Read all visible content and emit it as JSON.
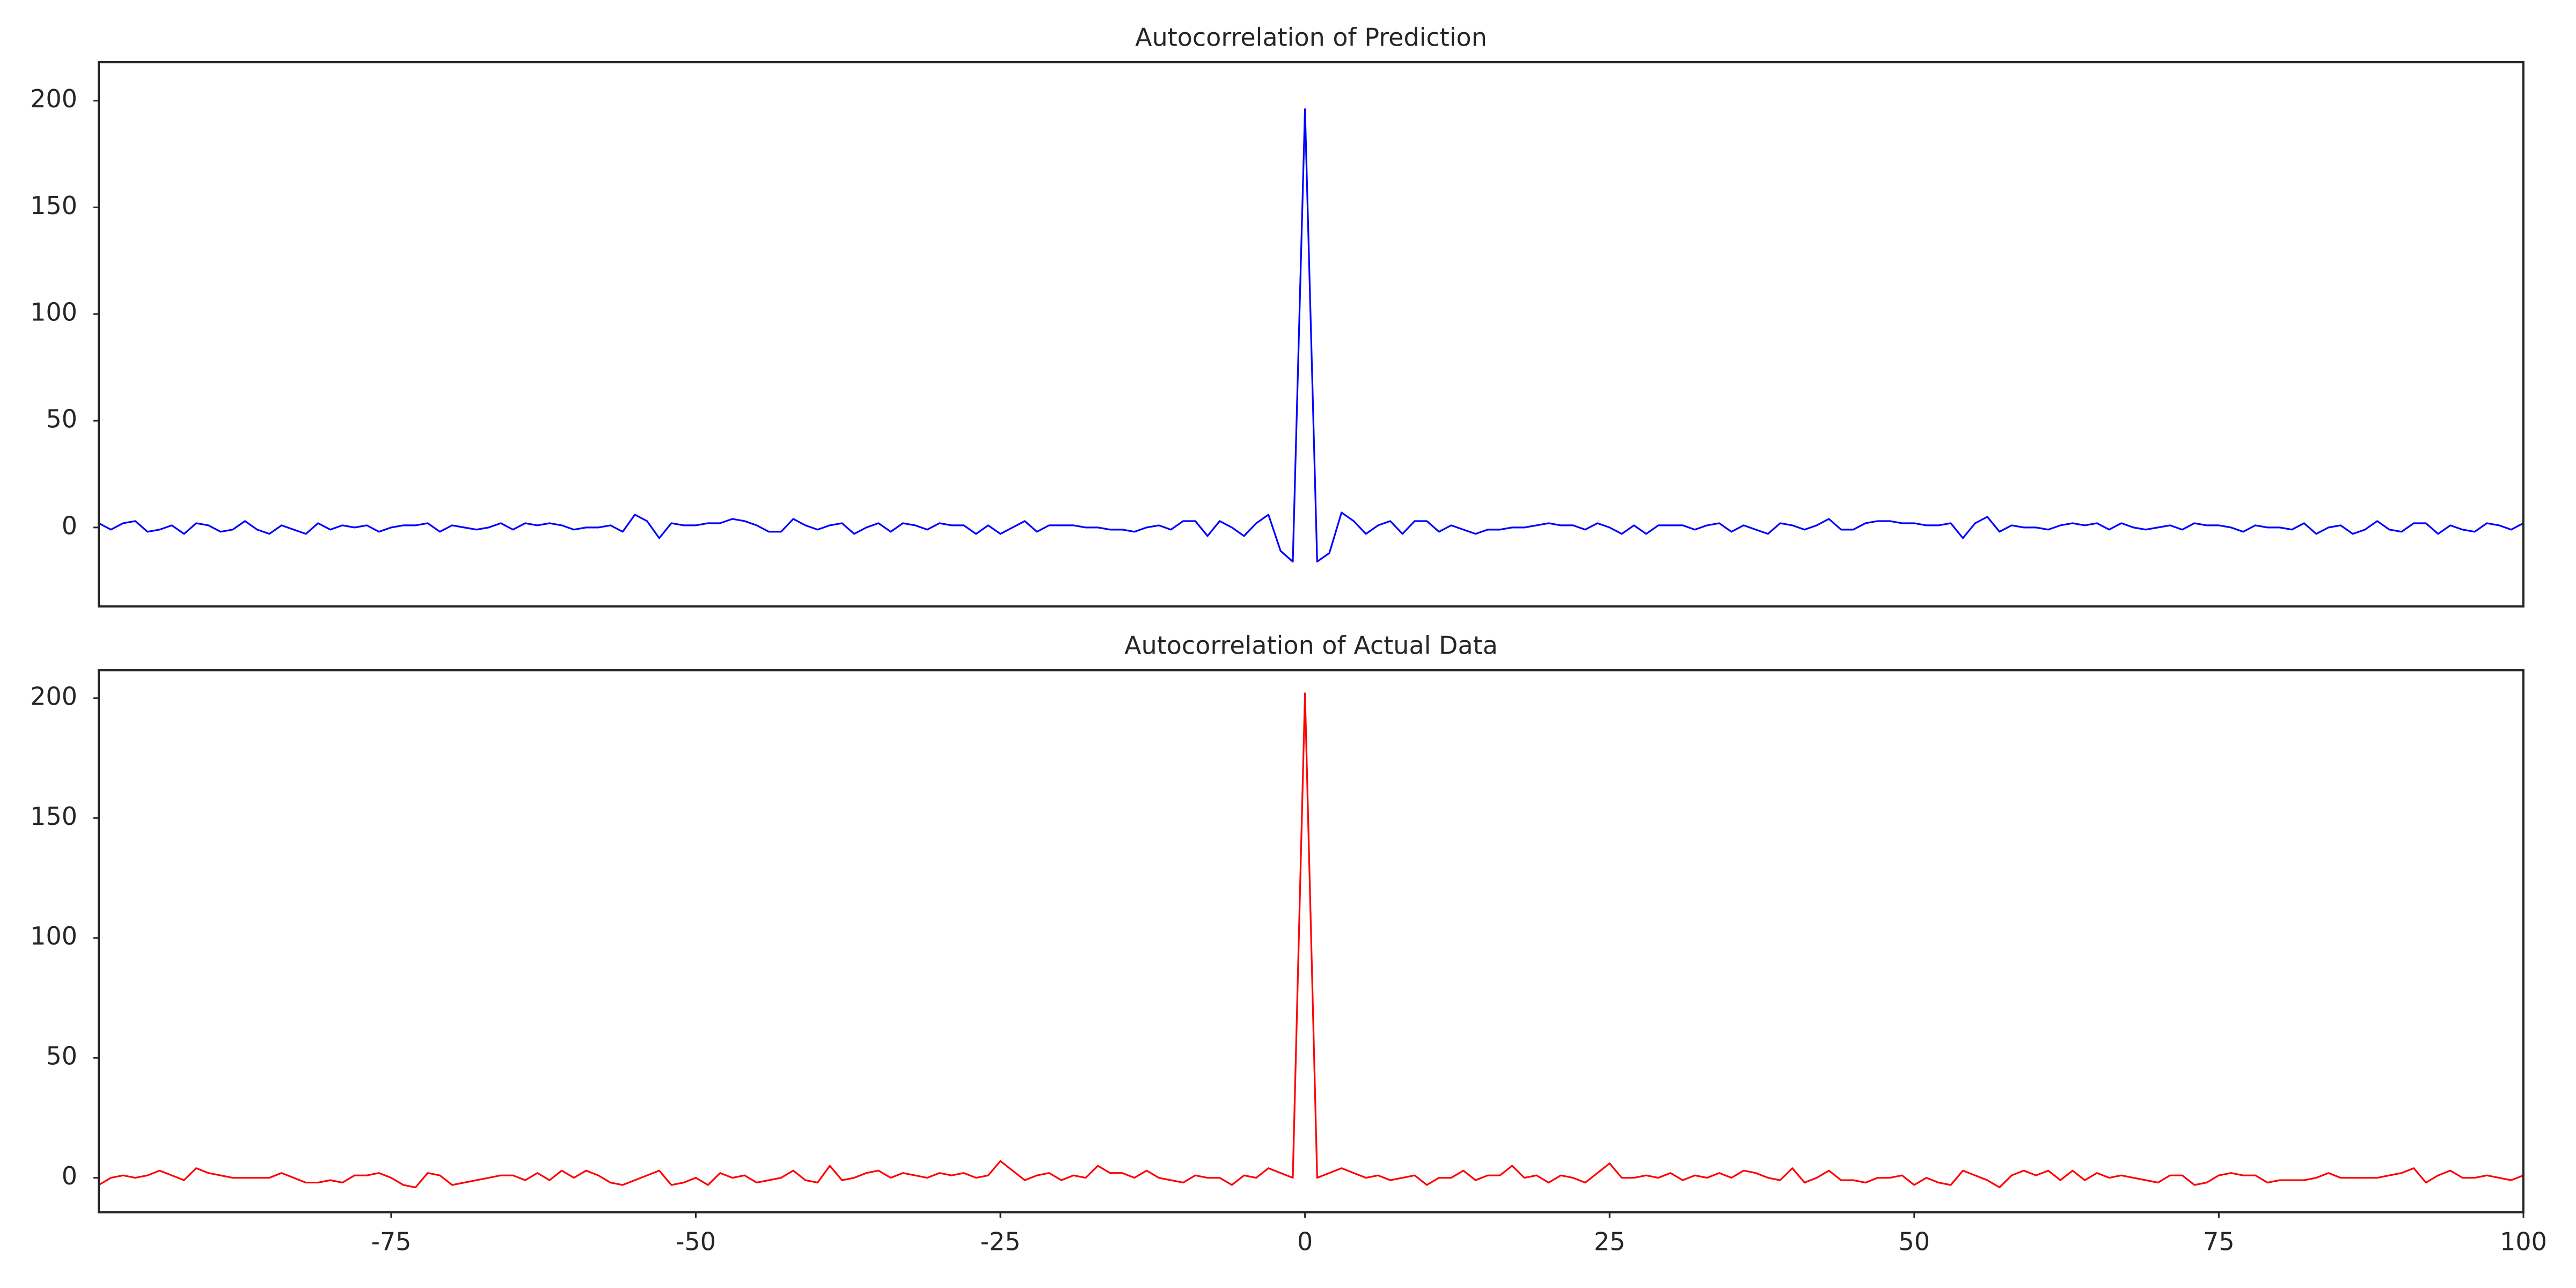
{
  "chart_data": [
    {
      "type": "line",
      "title": "Autocorrelation of Prediction",
      "color": "#0000ff",
      "x": [
        -99,
        -98,
        -97,
        -96,
        -95,
        -94,
        -93,
        -92,
        -91,
        -90,
        -89,
        -88,
        -87,
        -86,
        -85,
        -84,
        -83,
        -82,
        -81,
        -80,
        -79,
        -78,
        -77,
        -76,
        -75,
        -74,
        -73,
        -72,
        -71,
        -70,
        -69,
        -68,
        -67,
        -66,
        -65,
        -64,
        -63,
        -62,
        -61,
        -60,
        -59,
        -58,
        -57,
        -56,
        -55,
        -54,
        -53,
        -52,
        -51,
        -50,
        -49,
        -48,
        -47,
        -46,
        -45,
        -44,
        -43,
        -42,
        -41,
        -40,
        -39,
        -38,
        -37,
        -36,
        -35,
        -34,
        -33,
        -32,
        -31,
        -30,
        -29,
        -28,
        -27,
        -26,
        -25,
        -24,
        -23,
        -22,
        -21,
        -20,
        -19,
        -18,
        -17,
        -16,
        -15,
        -14,
        -13,
        -12,
        -11,
        -10,
        -9,
        -8,
        -7,
        -6,
        -5,
        -4,
        -3,
        -2,
        -1,
        0,
        1,
        2,
        3,
        4,
        5,
        6,
        7,
        8,
        9,
        10,
        11,
        12,
        13,
        14,
        15,
        16,
        17,
        18,
        19,
        20,
        21,
        22,
        23,
        24,
        25,
        26,
        27,
        28,
        29,
        30,
        31,
        32,
        33,
        34,
        35,
        36,
        37,
        38,
        39,
        40,
        41,
        42,
        43,
        44,
        45,
        46,
        47,
        48,
        49,
        50,
        51,
        52,
        53,
        54,
        55,
        56,
        57,
        58,
        59,
        60,
        61,
        62,
        63,
        64,
        65,
        66,
        67,
        68,
        69,
        70,
        71,
        72,
        73,
        74,
        75,
        76,
        77,
        78,
        79,
        80,
        81,
        82,
        83,
        84,
        85,
        86,
        87,
        88,
        89,
        90,
        91,
        92,
        93,
        94,
        95,
        96,
        97,
        98,
        99,
        100
      ],
      "values": [
        2,
        -1,
        2,
        3,
        -2,
        -1,
        1,
        -3,
        2,
        1,
        -2,
        -1,
        3,
        -1,
        -3,
        1,
        -1,
        -3,
        2,
        -1,
        1,
        0,
        1,
        -2,
        0,
        1,
        1,
        2,
        -2,
        1,
        0,
        -1,
        0,
        2,
        -1,
        2,
        1,
        2,
        1,
        -1,
        0,
        0,
        1,
        -2,
        6,
        3,
        -5,
        2,
        1,
        1,
        2,
        2,
        4,
        3,
        1,
        -2,
        -2,
        4,
        1,
        -1,
        1,
        2,
        -3,
        0,
        2,
        -2,
        2,
        1,
        -1,
        2,
        1,
        1,
        -3,
        1,
        -3,
        0,
        3,
        -2,
        1,
        1,
        1,
        0,
        0,
        -1,
        -1,
        -2,
        0,
        1,
        -1,
        3,
        3,
        -4,
        3,
        0,
        -4,
        2,
        6,
        -11,
        -16,
        196,
        -16,
        -12,
        7,
        3,
        -3,
        1,
        3,
        -3,
        3,
        3,
        -2,
        1,
        -1,
        -3,
        -1,
        -1,
        0,
        0,
        1,
        2,
        1,
        1,
        -1,
        2,
        0,
        -3,
        1,
        -3,
        1,
        1,
        1,
        -1,
        1,
        2,
        -2,
        1,
        -1,
        -3,
        2,
        1,
        -1,
        1,
        4,
        -1,
        -1,
        2,
        3,
        3,
        2,
        2,
        1,
        1,
        2,
        -5,
        2,
        5,
        -2,
        1,
        0,
        0,
        -1,
        1,
        2,
        1,
        2,
        -1,
        2,
        0,
        -1,
        0,
        1,
        -1,
        2,
        1,
        1,
        0,
        -2,
        1,
        0,
        0,
        -1,
        2,
        -3,
        0,
        1,
        -3,
        -1,
        3,
        -1,
        -2,
        2,
        2,
        -3,
        1,
        -1,
        -2,
        2,
        1,
        -1,
        2
      ],
      "xlim": [
        -99,
        100
      ],
      "ylim": [
        -37,
        218
      ],
      "yticks": [
        0,
        50,
        100,
        150,
        200
      ]
    },
    {
      "type": "line",
      "title": "Autocorrelation of Actual Data",
      "color": "#ff0000",
      "x": [
        -99,
        -98,
        -97,
        -96,
        -95,
        -94,
        -93,
        -92,
        -91,
        -90,
        -89,
        -88,
        -87,
        -86,
        -85,
        -84,
        -83,
        -82,
        -81,
        -80,
        -79,
        -78,
        -77,
        -76,
        -75,
        -74,
        -73,
        -72,
        -71,
        -70,
        -69,
        -68,
        -67,
        -66,
        -65,
        -64,
        -63,
        -62,
        -61,
        -60,
        -59,
        -58,
        -57,
        -56,
        -55,
        -54,
        -53,
        -52,
        -51,
        -50,
        -49,
        -48,
        -47,
        -46,
        -45,
        -44,
        -43,
        -42,
        -41,
        -40,
        -39,
        -38,
        -37,
        -36,
        -35,
        -34,
        -33,
        -32,
        -31,
        -30,
        -29,
        -28,
        -27,
        -26,
        -25,
        -24,
        -23,
        -22,
        -21,
        -20,
        -19,
        -18,
        -17,
        -16,
        -15,
        -14,
        -13,
        -12,
        -11,
        -10,
        -9,
        -8,
        -7,
        -6,
        -5,
        -4,
        -3,
        -2,
        -1,
        0,
        1,
        2,
        3,
        4,
        5,
        6,
        7,
        8,
        9,
        10,
        11,
        12,
        13,
        14,
        15,
        16,
        17,
        18,
        19,
        20,
        21,
        22,
        23,
        24,
        25,
        26,
        27,
        28,
        29,
        30,
        31,
        32,
        33,
        34,
        35,
        36,
        37,
        38,
        39,
        40,
        41,
        42,
        43,
        44,
        45,
        46,
        47,
        48,
        49,
        50,
        51,
        52,
        53,
        54,
        55,
        56,
        57,
        58,
        59,
        60,
        61,
        62,
        63,
        64,
        65,
        66,
        67,
        68,
        69,
        70,
        71,
        72,
        73,
        74,
        75,
        76,
        77,
        78,
        79,
        80,
        81,
        82,
        83,
        84,
        85,
        86,
        87,
        88,
        89,
        90,
        91,
        92,
        93,
        94,
        95,
        96,
        97,
        98,
        99,
        100
      ],
      "values": [
        -3,
        0,
        1,
        0,
        1,
        3,
        1,
        -1,
        4,
        2,
        1,
        0,
        0,
        0,
        0,
        2,
        0,
        -2,
        -2,
        -1,
        -2,
        1,
        1,
        2,
        0,
        -3,
        -4,
        2,
        1,
        -3,
        -2,
        -1,
        0,
        1,
        1,
        -1,
        2,
        -1,
        3,
        0,
        3,
        1,
        -2,
        -3,
        -1,
        1,
        3,
        -3,
        -2,
        0,
        -3,
        2,
        0,
        1,
        -2,
        -1,
        0,
        3,
        -1,
        -2,
        5,
        -1,
        0,
        2,
        3,
        0,
        2,
        1,
        0,
        2,
        1,
        2,
        0,
        1,
        7,
        3,
        -1,
        1,
        2,
        -1,
        1,
        0,
        5,
        2,
        2,
        0,
        3,
        0,
        -1,
        -2,
        1,
        0,
        0,
        -3,
        1,
        0,
        4,
        2,
        0,
        202,
        0,
        2,
        4,
        2,
        0,
        1,
        -1,
        0,
        1,
        -3,
        0,
        0,
        3,
        -1,
        1,
        1,
        5,
        0,
        1,
        -2,
        1,
        0,
        -2,
        2,
        6,
        0,
        0,
        1,
        0,
        2,
        -1,
        1,
        0,
        2,
        0,
        3,
        2,
        0,
        -1,
        4,
        -2,
        0,
        3,
        -1,
        -1,
        -2,
        0,
        0,
        1,
        -3,
        0,
        -2,
        -3,
        3,
        1,
        -1,
        -4,
        1,
        3,
        1,
        3,
        -1,
        3,
        -1,
        2,
        0,
        1,
        0,
        -1,
        -2,
        1,
        1,
        -3,
        -2,
        1,
        2,
        1,
        1,
        -2,
        -1,
        -1,
        -1,
        0,
        2,
        0,
        0,
        0,
        0,
        1,
        2,
        4,
        -2,
        1,
        3,
        0,
        0,
        1,
        0,
        -1,
        1
      ],
      "xlim": [
        -99,
        100
      ],
      "ylim": [
        -14.4,
        211.6
      ],
      "yticks": [
        0,
        50,
        100,
        150,
        200
      ],
      "xticks": [
        -75,
        -50,
        -25,
        0,
        25,
        50,
        75,
        100
      ]
    }
  ]
}
